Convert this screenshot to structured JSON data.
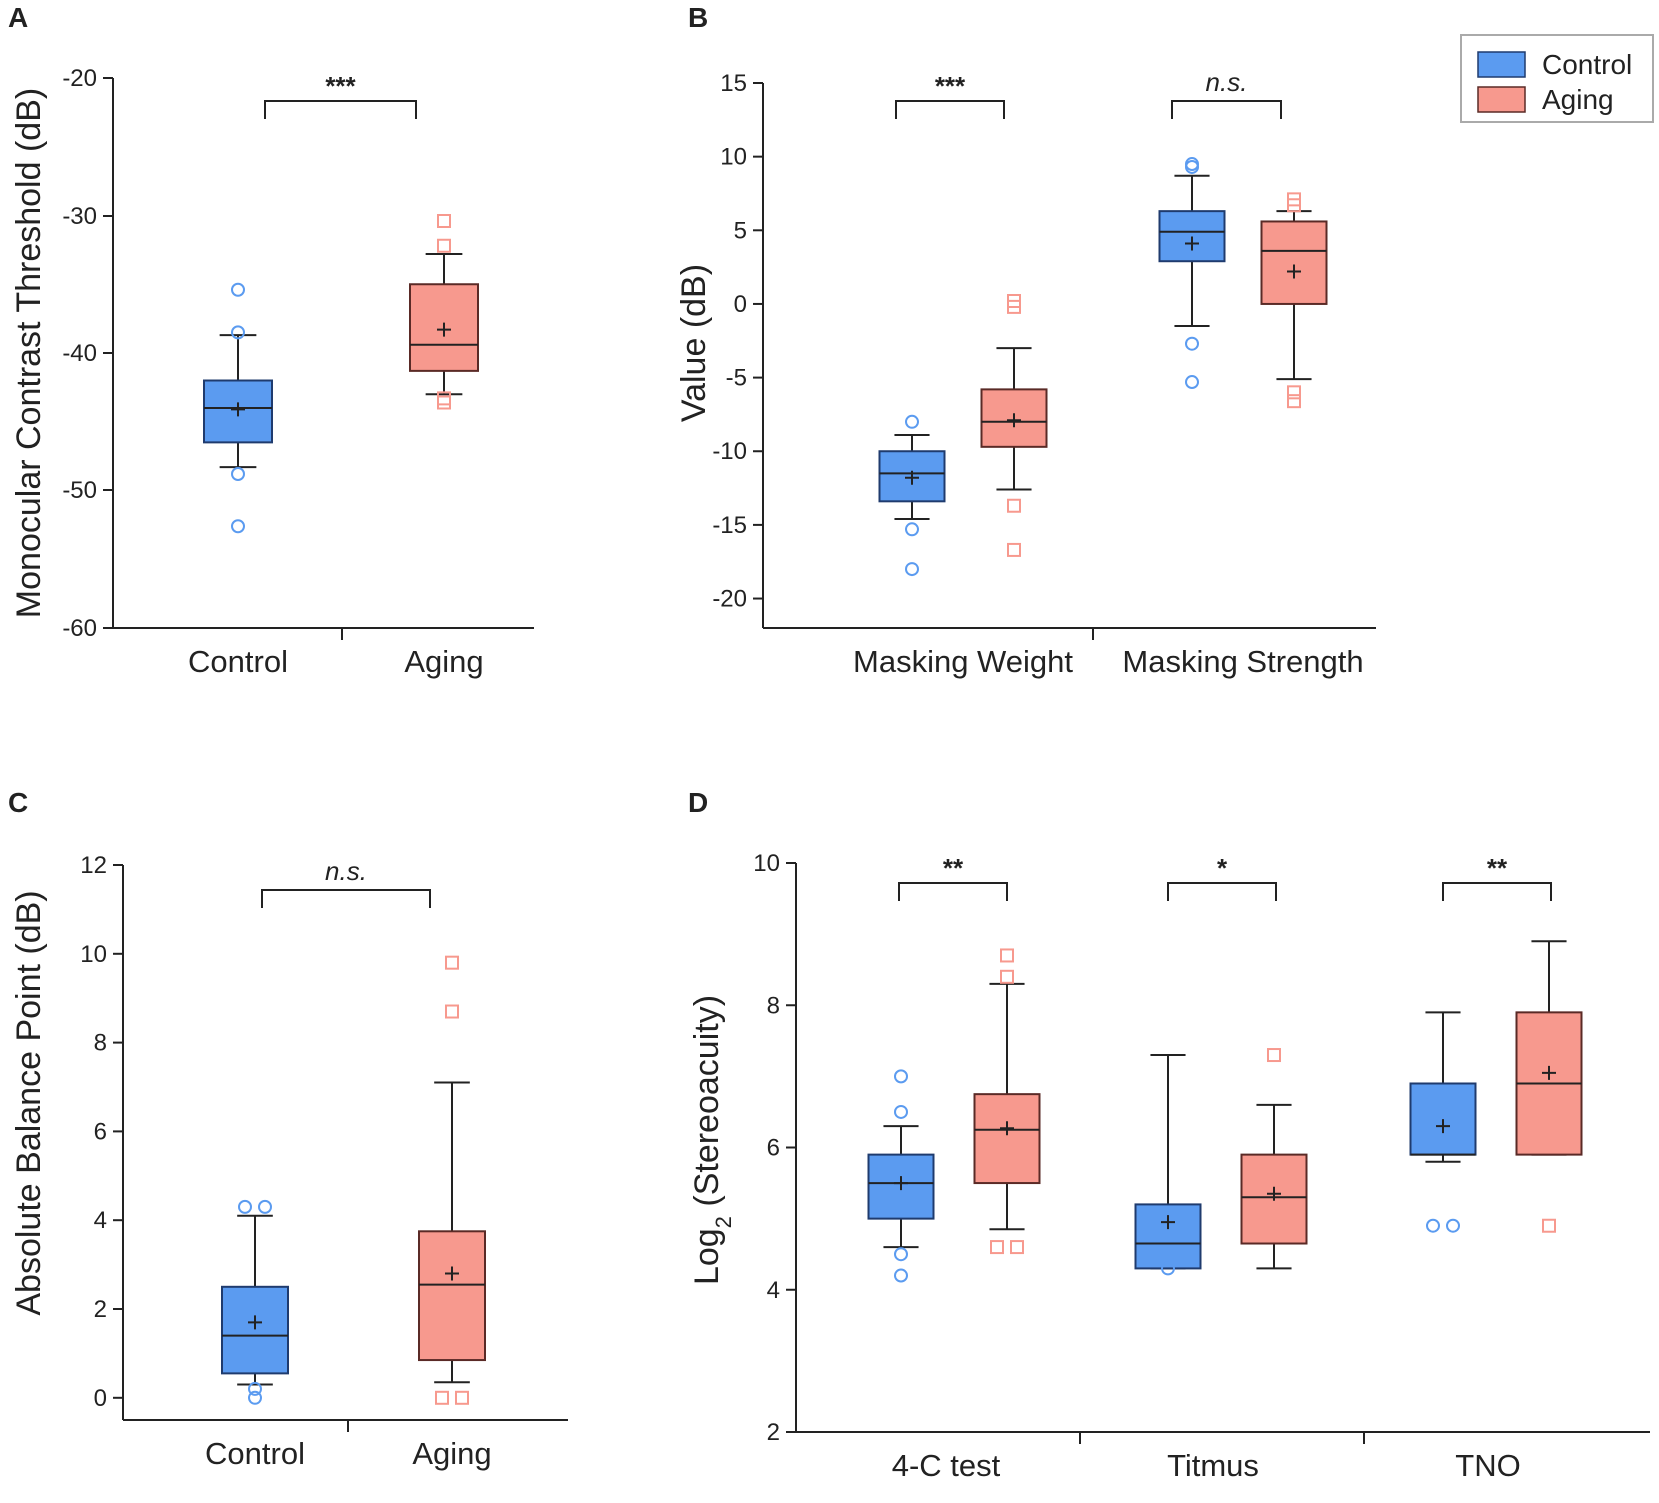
{
  "legend": {
    "entries": [
      {
        "label": "Control",
        "color": "#5b9bf0",
        "edge": "#1f3b6e"
      },
      {
        "label": "Aging",
        "color": "#f7998e",
        "edge": "#5a2a26"
      }
    ]
  },
  "chart_data": [
    {
      "id": "A",
      "panel_label": "A",
      "type": "box",
      "ylabel": "Monocular Contrast Threshold (dB)",
      "ylim": [
        -60,
        -20
      ],
      "yticks": [
        -60,
        -50,
        -40,
        -30,
        -20
      ],
      "ytick_labels": [
        "-60",
        "-50",
        "-40",
        "-30",
        "-20"
      ],
      "categories": [
        "Control",
        "Aging"
      ],
      "groups": [
        {
          "name": "Control",
          "boxes": [
            {
              "whislo": -48.3,
              "q1": -46.5,
              "median": -44.0,
              "q3": -42.0,
              "whishi": -38.7,
              "mean": -44.1,
              "outliers": [
                -35.4,
                -38.5,
                -48.8,
                -52.6
              ]
            }
          ]
        },
        {
          "name": "Aging",
          "boxes": [
            {
              "whislo": -43.0,
              "q1": -41.3,
              "median": -39.4,
              "q3": -35.0,
              "whishi": -32.8,
              "mean": -38.3,
              "outliers": [
                -30.4,
                -32.2,
                -43.6,
                -43.3
              ]
            }
          ]
        }
      ],
      "significance": [
        {
          "label": "***"
        }
      ]
    },
    {
      "id": "B",
      "panel_label": "B",
      "type": "box",
      "ylabel": "Value (dB)",
      "ylim": [
        -22,
        15
      ],
      "yticks": [
        -20,
        -15,
        -10,
        -5,
        0,
        5,
        10,
        15
      ],
      "ytick_labels": [
        "-20",
        "-15",
        "-10",
        "-5",
        "0",
        "5",
        "10",
        "15"
      ],
      "categories": [
        "Masking Weight",
        "Masking Strength"
      ],
      "groups": [
        {
          "name": "Masking Weight",
          "boxes": [
            {
              "series": "Control",
              "whislo": -14.6,
              "q1": -13.4,
              "median": -11.5,
              "q3": -10.0,
              "whishi": -8.9,
              "mean": -11.8,
              "outliers": [
                -8.0,
                -15.3,
                -18.0
              ]
            },
            {
              "series": "Aging",
              "whislo": -12.6,
              "q1": -9.7,
              "median": -8.0,
              "q3": -5.8,
              "whishi": -3.0,
              "mean": -7.9,
              "outliers": [
                -0.2,
                0.2,
                -13.7,
                -16.7
              ]
            }
          ]
        },
        {
          "name": "Masking Strength",
          "boxes": [
            {
              "series": "Control",
              "whislo": -1.5,
              "q1": 2.9,
              "median": 4.9,
              "q3": 6.3,
              "whishi": 8.7,
              "mean": 4.1,
              "outliers": [
                9.3,
                9.5,
                -2.7,
                -5.3
              ]
            },
            {
              "series": "Aging",
              "whislo": -5.1,
              "q1": 0.0,
              "median": 3.6,
              "q3": 5.6,
              "whishi": 6.3,
              "mean": 2.2,
              "outliers": [
                6.7,
                7.1,
                -6.6,
                -6.0
              ]
            }
          ]
        }
      ],
      "significance": [
        {
          "label": "***"
        },
        {
          "label": "n.s."
        }
      ]
    },
    {
      "id": "C",
      "panel_label": "C",
      "type": "box",
      "ylabel": "Absolute Balance Point (dB)",
      "ylim": [
        -0.5,
        12
      ],
      "yticks": [
        0,
        2,
        4,
        6,
        8,
        10,
        12
      ],
      "ytick_labels": [
        "0",
        "2",
        "4",
        "6",
        "8",
        "10",
        "12"
      ],
      "categories": [
        "Control",
        "Aging"
      ],
      "groups": [
        {
          "name": "Control",
          "boxes": [
            {
              "whislo": 0.3,
              "q1": 0.55,
              "median": 1.4,
              "q3": 2.5,
              "whishi": 4.1,
              "mean": 1.7,
              "outliers": [
                4.3,
                4.3,
                0.2,
                0.0
              ]
            }
          ]
        },
        {
          "name": "Aging",
          "boxes": [
            {
              "whislo": 0.35,
              "q1": 0.85,
              "median": 2.55,
              "q3": 3.75,
              "whishi": 7.1,
              "mean": 2.8,
              "outliers": [
                9.8,
                8.7,
                0.0,
                0.0
              ]
            }
          ]
        }
      ],
      "significance": [
        {
          "label": "n.s."
        }
      ]
    },
    {
      "id": "D",
      "panel_label": "D",
      "type": "box",
      "ylabel": "Log",
      "ylabel_sub": "2",
      "ylabel_rest": " (Stereoacuity)",
      "ylim": [
        2,
        10
      ],
      "yticks": [
        2,
        4,
        6,
        8,
        10
      ],
      "ytick_labels": [
        "2",
        "4",
        "6",
        "8",
        "10"
      ],
      "categories": [
        "4-C test",
        "Titmus",
        "TNO"
      ],
      "groups": [
        {
          "name": "4-C test",
          "boxes": [
            {
              "series": "Control",
              "whislo": 4.6,
              "q1": 5.0,
              "median": 5.5,
              "q3": 5.9,
              "whishi": 6.3,
              "mean": 5.5,
              "outliers": [
                7.0,
                6.5,
                4.5,
                4.2
              ]
            },
            {
              "series": "Aging",
              "whislo": 4.85,
              "q1": 5.5,
              "median": 6.25,
              "q3": 6.75,
              "whishi": 8.3,
              "mean": 6.27,
              "outliers": [
                8.7,
                8.4,
                4.6,
                4.6
              ]
            }
          ]
        },
        {
          "name": "Titmus",
          "boxes": [
            {
              "series": "Control",
              "whislo": 4.3,
              "q1": 4.3,
              "median": 4.65,
              "q3": 5.2,
              "whishi": 7.3,
              "mean": 4.95,
              "outliers": [
                4.3
              ]
            },
            {
              "series": "Aging",
              "whislo": 4.3,
              "q1": 4.65,
              "median": 5.3,
              "q3": 5.9,
              "whishi": 6.6,
              "mean": 5.35,
              "outliers": [
                7.3
              ]
            }
          ]
        },
        {
          "name": "TNO",
          "boxes": [
            {
              "series": "Control",
              "whislo": 5.8,
              "q1": 5.9,
              "median": 5.9,
              "q3": 6.9,
              "whishi": 7.9,
              "mean": 6.3,
              "outliers": [
                4.9,
                4.9
              ]
            },
            {
              "series": "Aging",
              "whislo": 5.9,
              "q1": 5.9,
              "median": 6.9,
              "q3": 7.9,
              "whishi": 8.9,
              "mean": 7.05,
              "outliers": [
                4.9
              ]
            }
          ]
        }
      ],
      "significance": [
        {
          "label": "**"
        },
        {
          "label": "*"
        },
        {
          "label": "**"
        }
      ]
    }
  ]
}
